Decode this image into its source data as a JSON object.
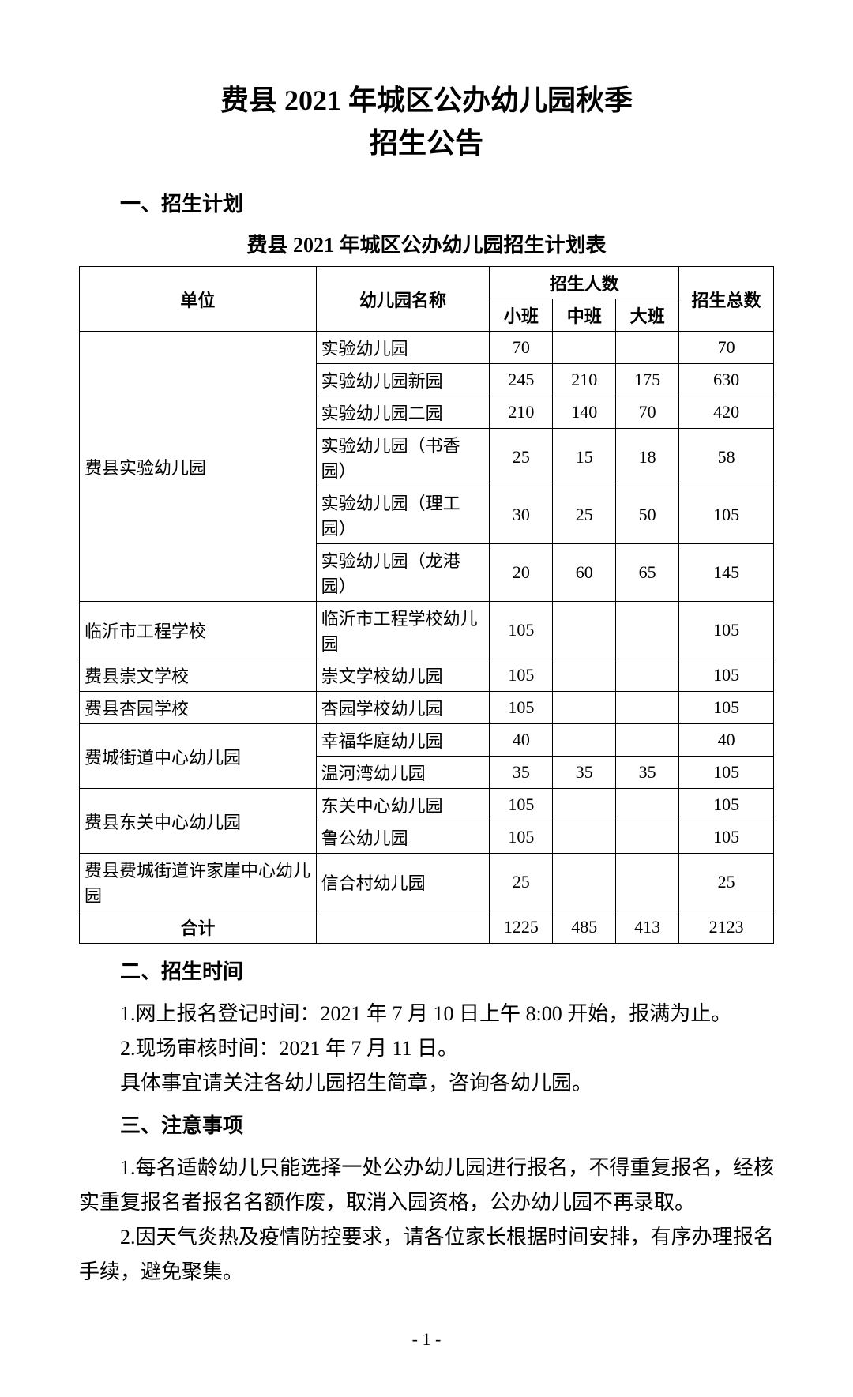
{
  "title_line1": "费县 2021 年城区公办幼儿园秋季",
  "title_line2": "招生公告",
  "section1_heading": "一、招生计划",
  "table_title": "费县 2021 年城区公办幼儿园招生计划表",
  "table": {
    "headers": {
      "unit": "单位",
      "name": "幼儿园名称",
      "enroll_group": "招生人数",
      "small": "小班",
      "mid": "中班",
      "large": "大班",
      "total": "招生总数"
    },
    "rows": [
      {
        "unit": "费县实验幼儿园",
        "unit_rowspan": 6,
        "name": "实验幼儿园",
        "small": "70",
        "mid": "",
        "large": "",
        "total": "70"
      },
      {
        "name": "实验幼儿园新园",
        "small": "245",
        "mid": "210",
        "large": "175",
        "total": "630"
      },
      {
        "name": "实验幼儿园二园",
        "small": "210",
        "mid": "140",
        "large": "70",
        "total": "420"
      },
      {
        "name": "实验幼儿园（书香园）",
        "small": "25",
        "mid": "15",
        "large": "18",
        "total": "58"
      },
      {
        "name": "实验幼儿园（理工园）",
        "small": "30",
        "mid": "25",
        "large": "50",
        "total": "105"
      },
      {
        "name": "实验幼儿园（龙港园）",
        "small": "20",
        "mid": "60",
        "large": "65",
        "total": "145"
      },
      {
        "unit": "临沂市工程学校",
        "unit_rowspan": 1,
        "name": "临沂市工程学校幼儿园",
        "small": "105",
        "mid": "",
        "large": "",
        "total": "105"
      },
      {
        "unit": "费县崇文学校",
        "unit_rowspan": 1,
        "name": "崇文学校幼儿园",
        "small": "105",
        "mid": "",
        "large": "",
        "total": "105"
      },
      {
        "unit": "费县杏园学校",
        "unit_rowspan": 1,
        "name": "杏园学校幼儿园",
        "small": "105",
        "mid": "",
        "large": "",
        "total": "105"
      },
      {
        "unit": "费城街道中心幼儿园",
        "unit_rowspan": 2,
        "name": "幸福华庭幼儿园",
        "small": "40",
        "mid": "",
        "large": "",
        "total": "40"
      },
      {
        "name": "温河湾幼儿园",
        "small": "35",
        "mid": "35",
        "large": "35",
        "total": "105"
      },
      {
        "unit": "费县东关中心幼儿园",
        "unit_rowspan": 2,
        "name": "东关中心幼儿园",
        "small": "105",
        "mid": "",
        "large": "",
        "total": "105"
      },
      {
        "name": "鲁公幼儿园",
        "small": "105",
        "mid": "",
        "large": "",
        "total": "105"
      },
      {
        "unit": "费县费城街道许家崖中心幼儿园",
        "unit_rowspan": 1,
        "name": "信合村幼儿园",
        "small": "25",
        "mid": "",
        "large": "",
        "total": "25"
      }
    ],
    "total_row": {
      "label": "合计",
      "name": "",
      "small": "1225",
      "mid": "485",
      "large": "413",
      "total": "2123"
    }
  },
  "section2_heading": "二、招生时间",
  "p2_1": "1.网上报名登记时间：2021 年 7 月 10 日上午 8:00 开始，报满为止。",
  "p2_2": "2.现场审核时间：2021 年 7 月 11 日。",
  "p2_3": "具体事宜请关注各幼儿园招生简章，咨询各幼儿园。",
  "section3_heading": "三、注意事项",
  "p3_1": "1.每名适龄幼儿只能选择一处公办幼儿园进行报名，不得重复报名，经核实重复报名者报名名额作废，取消入园资格，公办幼儿园不再录取。",
  "p3_2": "2.因天气炎热及疫情防控要求，请各位家长根据时间安排，有序办理报名手续，避免聚集。",
  "page_number": "- 1 -",
  "colors": {
    "text": "#000000",
    "background": "#ffffff",
    "border": "#000000"
  },
  "fonts": {
    "title_size": 36,
    "body_size": 26,
    "table_size": 22
  }
}
